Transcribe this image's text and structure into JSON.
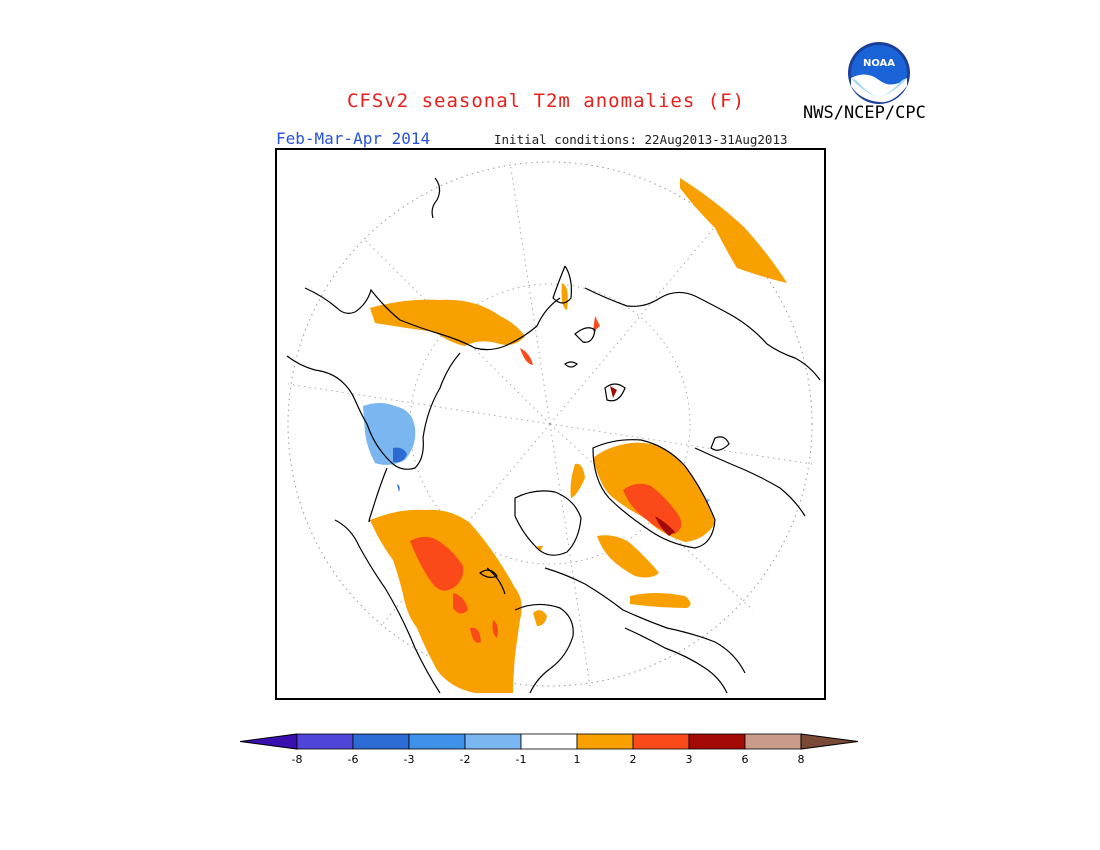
{
  "header": {
    "title": "CFSv2 seasonal T2m anomalies (F)",
    "season": "Feb-Mar-Apr 2014",
    "initial_conditions": "Initial conditions: 22Aug2013-31Aug2013",
    "agency": "NWS/NCEP/CPC",
    "logo_text": "NOAA"
  },
  "map": {
    "projection": "north-polar-stereographic",
    "anomaly_regions": [
      {
        "region": "northern-europe-russia",
        "category": "1 to 2",
        "color": "#f8a000"
      },
      {
        "region": "canada-arctic-archipelago-west",
        "category": "1 to 2",
        "color": "#f8a000"
      },
      {
        "region": "central-asia",
        "category": "1 to 2",
        "color": "#f8a000"
      },
      {
        "region": "central-asia-core",
        "category": "2 to 3",
        "color": "#fb4a1a"
      },
      {
        "region": "greenland",
        "category": "1 to 2",
        "color": "#f8a000"
      },
      {
        "region": "greenland-core",
        "category": "2 to 3",
        "color": "#fb4a1a"
      },
      {
        "region": "eastern-canada",
        "category": "1 to 2",
        "color": "#f8a000"
      },
      {
        "region": "alaska-bering",
        "category": "-2 to -1",
        "color": "#79b4ee"
      },
      {
        "region": "alaska-core",
        "category": "-3 to -2",
        "color": "#2f7fe0"
      },
      {
        "region": "north-africa-edge",
        "category": "1 to 2",
        "color": "#f8a000"
      }
    ]
  },
  "colorbar": {
    "labels": [
      "-8",
      "-6",
      "-3",
      "-2",
      "-1",
      "1",
      "2",
      "3",
      "6",
      "8"
    ],
    "colors": [
      "#3a0fb0",
      "#4f45d8",
      "#2c6bd4",
      "#3f91ea",
      "#7ab6f0",
      "#ffffff",
      "#f8a000",
      "#fb4a1a",
      "#a30a06",
      "#c99b88",
      "#7a4a36"
    ]
  }
}
